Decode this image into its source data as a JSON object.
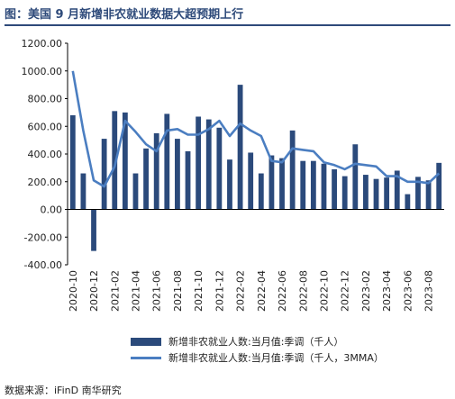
{
  "title": "图：美国 9 月新增非农就业数据大超预期上行",
  "source": "数据来源：iFinD 南华研究",
  "colors": {
    "bar": "#2b4a7b",
    "line": "#4b7ec1",
    "axis": "#000000",
    "title": "#2e4a7a"
  },
  "chart_data": {
    "type": "bar",
    "x": [
      "2020-10",
      "2020-11",
      "2020-12",
      "2021-01",
      "2021-02",
      "2021-03",
      "2021-04",
      "2021-05",
      "2021-06",
      "2021-07",
      "2021-08",
      "2021-09",
      "2021-10",
      "2021-11",
      "2021-12",
      "2022-01",
      "2022-02",
      "2022-03",
      "2022-04",
      "2022-05",
      "2022-06",
      "2022-07",
      "2022-08",
      "2022-09",
      "2022-10",
      "2022-11",
      "2022-12",
      "2023-01",
      "2023-02",
      "2023-03",
      "2023-04",
      "2023-05",
      "2023-06",
      "2023-07",
      "2023-08",
      "2023-09"
    ],
    "x_tick_labels": [
      "2020-10",
      "2020-12",
      "2021-02",
      "2021-04",
      "2021-06",
      "2021-08",
      "2021-10",
      "2021-12",
      "2022-02",
      "2022-04",
      "2022-06",
      "2022-08",
      "2022-10",
      "2022-12",
      "2023-02",
      "2023-04",
      "2023-06",
      "2023-08"
    ],
    "y_tick_labels": [
      "1200.00",
      "1000.00",
      "800.00",
      "600.00",
      "400.00",
      "200.00",
      "0.00",
      "-200.00",
      "-400.00"
    ],
    "ylim": [
      -400,
      1200
    ],
    "series": [
      {
        "name": "新增非农就业人数:当月值:季调（千人）",
        "type": "bar",
        "values": [
          680,
          260,
          -300,
          510,
          710,
          700,
          260,
          440,
          550,
          690,
          510,
          420,
          670,
          650,
          590,
          360,
          900,
          410,
          260,
          390,
          370,
          570,
          350,
          350,
          330,
          290,
          240,
          470,
          250,
          220,
          230,
          280,
          110,
          235,
          210,
          336
        ]
      },
      {
        "name": "新增非农就业人数:当月值:季调（千人，3MMA）",
        "type": "line",
        "values": [
          1000,
          570,
          210,
          165,
          310,
          640,
          560,
          470,
          420,
          570,
          580,
          540,
          540,
          580,
          640,
          530,
          620,
          570,
          530,
          350,
          340,
          440,
          430,
          420,
          340,
          320,
          290,
          330,
          320,
          310,
          240,
          240,
          200,
          200,
          190,
          260
        ]
      }
    ]
  }
}
